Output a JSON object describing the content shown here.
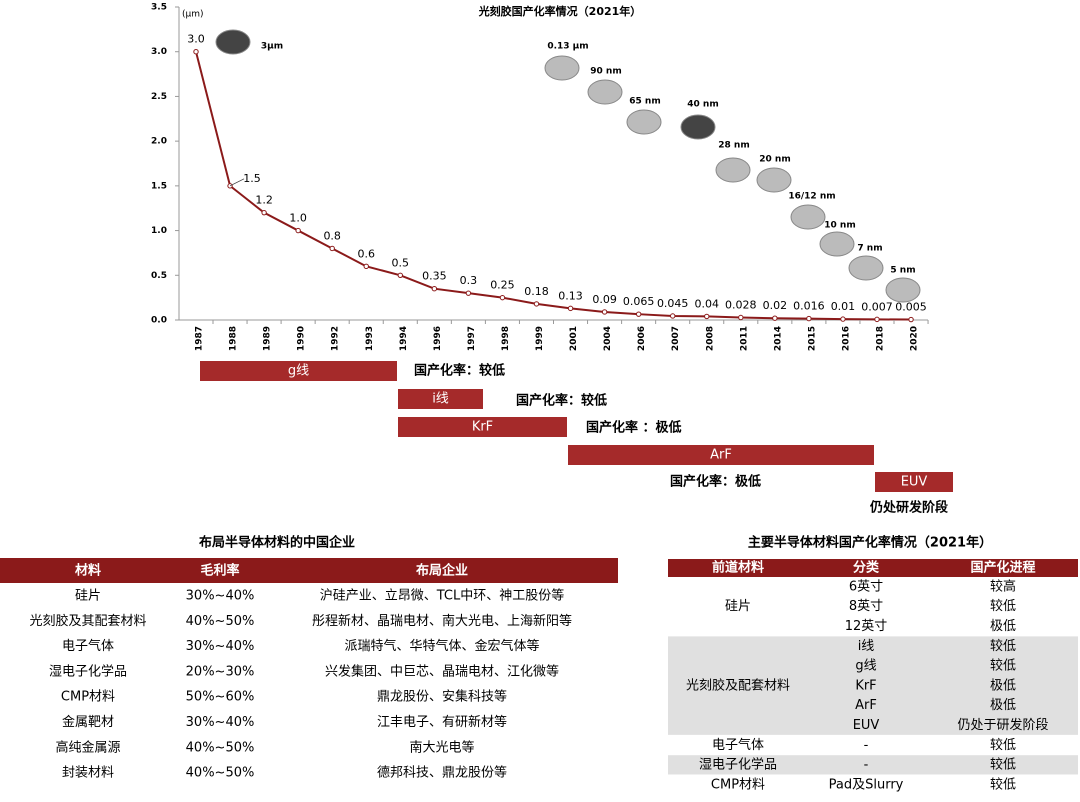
{
  "chart_data": {
    "type": "line",
    "title": "光刻胶国产化率情况（2021年）",
    "y_unit": "(μm)",
    "color": "#8b1a1a",
    "categories": [
      "1987",
      "1988",
      "1989",
      "1990",
      "1992",
      "1993",
      "1994",
      "1996",
      "1997",
      "1998",
      "1999",
      "2001",
      "2004",
      "2006",
      "2007",
      "2008",
      "2011",
      "2014",
      "2015",
      "2016",
      "2018",
      "2020"
    ],
    "values": [
      3.0,
      1.5,
      1.2,
      1.0,
      0.8,
      0.6,
      0.5,
      0.35,
      0.3,
      0.25,
      0.18,
      0.13,
      0.09,
      0.065,
      0.045,
      0.04,
      0.028,
      0.02,
      0.016,
      0.01,
      0.007,
      0.005
    ],
    "value_labels": [
      "3.0",
      "1.5",
      "1.2",
      "1.0",
      "0.8",
      "0.6",
      "0.5",
      "0.35",
      "0.3",
      "0.25",
      "0.18",
      "0.13",
      "0.09",
      "0.065",
      "0.045",
      "0.04",
      "0.028",
      "0.02",
      "0.016",
      "0.01",
      "0.007",
      "0.005"
    ],
    "ylim": [
      0,
      3.5
    ],
    "yticks": [
      {
        "value": 0,
        "label": "0.0"
      },
      {
        "value": 0.5,
        "label": "0.5"
      },
      {
        "value": 1,
        "label": "1.0"
      },
      {
        "value": 1.5,
        "label": "1.5"
      },
      {
        "value": 2,
        "label": "2.0"
      },
      {
        "value": 2.5,
        "label": "2.5"
      },
      {
        "value": 3,
        "label": "3.0"
      },
      {
        "value": 3.5,
        "label": "3.5"
      }
    ],
    "annotations": [
      "3μm",
      "0.13 μm",
      "90 nm",
      "65 nm",
      "40 nm",
      "28 nm",
      "20 nm",
      "16/12 nm",
      "10 nm",
      "7 nm",
      "5 nm"
    ],
    "phases": [
      {
        "label": "g线",
        "status": "国产化率：较低"
      },
      {
        "label": "i线",
        "status": "国产化率：较低"
      },
      {
        "label": "KrF",
        "status": "国产化率 ：极低"
      },
      {
        "label": "ArF",
        "status": "国产化率：极低"
      },
      {
        "label": "EUV",
        "status": "仍处研发阶段"
      }
    ]
  },
  "left_table": {
    "title": "布局半导体材料的中国企业",
    "header": [
      "材料",
      "毛利率",
      "布局企业"
    ],
    "rows": [
      [
        "硅片",
        "30%~40%",
        "沪硅产业、立昂微、TCL中环、神工股份等"
      ],
      [
        "光刻胶及其配套材料",
        "40%~50%",
        "彤程新材、晶瑞电材、南大光电、上海新阳等"
      ],
      [
        "电子气体",
        "30%~40%",
        "派瑞特气、华特气体、金宏气体等"
      ],
      [
        "湿电子化学品",
        "20%~30%",
        "兴发集团、中巨芯、晶瑞电材、江化微等"
      ],
      [
        "CMP材料",
        "50%~60%",
        "鼎龙股份、安集科技等"
      ],
      [
        "金属靶材",
        "30%~40%",
        "江丰电子、有研新材等"
      ],
      [
        "高纯金属源",
        "40%~50%",
        "南大光电等"
      ],
      [
        "封装材料",
        "40%~50%",
        "德邦科技、鼎龙股份等"
      ]
    ]
  },
  "right_table": {
    "title": "主要半导体材料国产化率情况（2021年）",
    "header": [
      "前道材料",
      "分类",
      "国产化进程"
    ],
    "groups": [
      {
        "material": "硅片",
        "rows": [
          [
            "6英寸",
            "较高"
          ],
          [
            "8英寸",
            "较低"
          ],
          [
            "12英寸",
            "极低"
          ]
        ]
      },
      {
        "material": "光刻胶及配套材料",
        "rows": [
          [
            "i线",
            "较低"
          ],
          [
            "g线",
            "较低"
          ],
          [
            "KrF",
            "极低"
          ],
          [
            "ArF",
            "极低"
          ],
          [
            "EUV",
            "仍处于研发阶段"
          ]
        ]
      },
      {
        "material": "电子气体",
        "rows": [
          [
            "-",
            "较低"
          ]
        ]
      },
      {
        "material": "湿电子化学品",
        "rows": [
          [
            "-",
            "较低"
          ]
        ]
      },
      {
        "material": "CMP材料",
        "rows": [
          [
            "Pad及Slurry",
            "较低"
          ]
        ]
      }
    ]
  }
}
